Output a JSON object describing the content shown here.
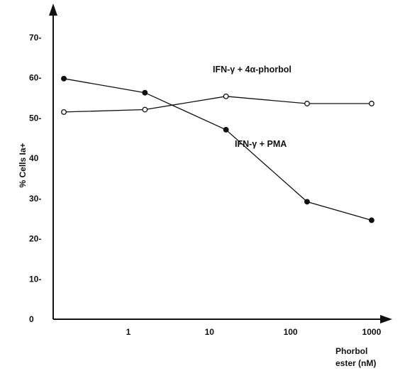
{
  "chart_data": {
    "type": "line",
    "title": "",
    "xlabel": [
      "Phorbol",
      "ester (nM)"
    ],
    "ylabel": "% Cells Ia+",
    "x_scale": "log",
    "x_tick_labels": [
      "1",
      "10",
      "100",
      "1000"
    ],
    "y_tick_labels": [
      "0",
      "10-",
      "20-",
      "30-",
      "40",
      "50-",
      "60-",
      "70-"
    ],
    "ylim": [
      0,
      70
    ],
    "grid": false,
    "legend": "none",
    "series": [
      {
        "name": "IFN-γ + 4α-phorbol",
        "marker": "open-circle",
        "x": [
          0.16,
          1.6,
          16,
          160,
          1000
        ],
        "y": [
          51.5,
          52.1,
          55.4,
          53.6,
          53.6
        ]
      },
      {
        "name": "IFN-γ + PMA",
        "marker": "filled-circle",
        "x": [
          0.16,
          1.6,
          16,
          160,
          1000
        ],
        "y": [
          59.8,
          56.3,
          47.1,
          29.2,
          24.6
        ]
      }
    ]
  }
}
